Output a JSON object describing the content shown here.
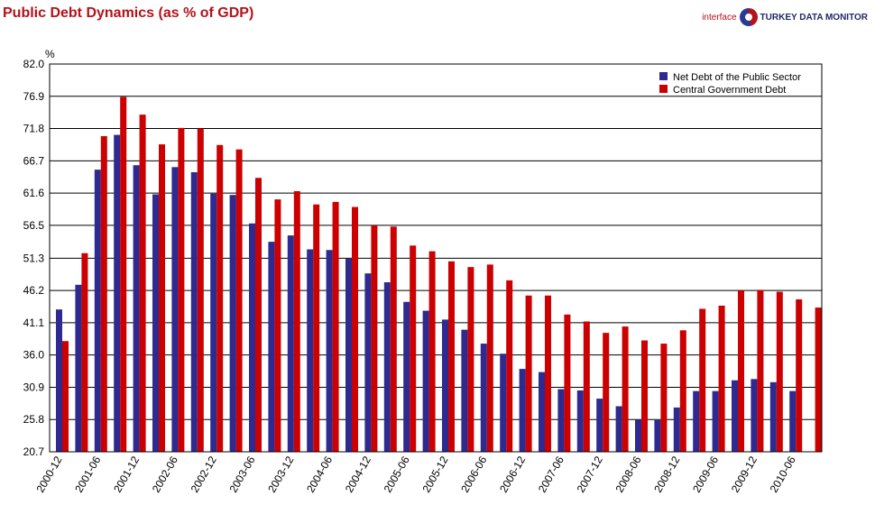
{
  "header": {
    "title": "Public Debt Dynamics (as % of GDP)",
    "brand_prefix": "interface",
    "brand_name": "TURKEY DATA MONITOR",
    "logo_icon": "pie-globe-icon"
  },
  "chart_data": {
    "type": "bar",
    "title": "Public Debt Dynamics (as % of GDP)",
    "ylabel": "%",
    "xlabel": "",
    "ylim": [
      20.7,
      82.0
    ],
    "yticks": [
      "82.0",
      "76.9",
      "71.8",
      "66.7",
      "61.6",
      "56.5",
      "51.3",
      "46.2",
      "41.1",
      "36.0",
      "30.9",
      "25.8",
      "20.7"
    ],
    "grid": "horizontal",
    "legend_position": "top-right",
    "x_tick_labels": [
      "2000-12",
      "2001-06",
      "2001-12",
      "2002-06",
      "2002-12",
      "2003-06",
      "2003-12",
      "2004-06",
      "2004-12",
      "2005-06",
      "2005-12",
      "2006-06",
      "2006-12",
      "2007-06",
      "2007-12",
      "2008-06",
      "2008-12",
      "2009-06",
      "2009-12",
      "2010-06"
    ],
    "categories": [
      "2000-12",
      "2001-03",
      "2001-06",
      "2001-09",
      "2001-12",
      "2002-03",
      "2002-06",
      "2002-09",
      "2002-12",
      "2003-03",
      "2003-06",
      "2003-09",
      "2003-12",
      "2004-03",
      "2004-06",
      "2004-09",
      "2004-12",
      "2005-03",
      "2005-06",
      "2005-09",
      "2005-12",
      "2006-03",
      "2006-06",
      "2006-09",
      "2006-12",
      "2007-03",
      "2007-06",
      "2007-09",
      "2007-12",
      "2008-03",
      "2008-06",
      "2008-09",
      "2008-12",
      "2009-03",
      "2009-06",
      "2009-09",
      "2009-12",
      "2010-03",
      "2010-06",
      "2010-09"
    ],
    "series": [
      {
        "name": "Net Debt of the Public Sector",
        "color": "#2e2a8f",
        "values": [
          43.2,
          47.1,
          65.3,
          70.8,
          66.0,
          61.4,
          65.7,
          64.9,
          61.5,
          61.3,
          56.8,
          53.9,
          54.9,
          52.7,
          52.6,
          51.2,
          48.9,
          47.5,
          44.4,
          43.0,
          41.6,
          40.0,
          37.8,
          36.2,
          33.8,
          33.3,
          30.6,
          30.4,
          29.1,
          27.9,
          25.8,
          25.7,
          27.7,
          30.3,
          30.3,
          32.0,
          32.2,
          31.7,
          30.3,
          null
        ]
      },
      {
        "name": "Central Government Debt",
        "color": "#cc0000",
        "values": [
          38.2,
          52.1,
          70.6,
          76.8,
          74.0,
          69.3,
          71.9,
          71.8,
          69.2,
          68.5,
          64.0,
          60.6,
          61.9,
          59.8,
          60.2,
          59.4,
          56.5,
          56.3,
          53.3,
          52.4,
          50.8,
          49.9,
          50.3,
          47.8,
          45.4,
          45.4,
          42.4,
          41.3,
          39.5,
          40.5,
          38.3,
          37.8,
          39.9,
          43.3,
          43.8,
          46.2,
          46.3,
          46.0,
          44.8,
          43.5
        ]
      }
    ]
  }
}
